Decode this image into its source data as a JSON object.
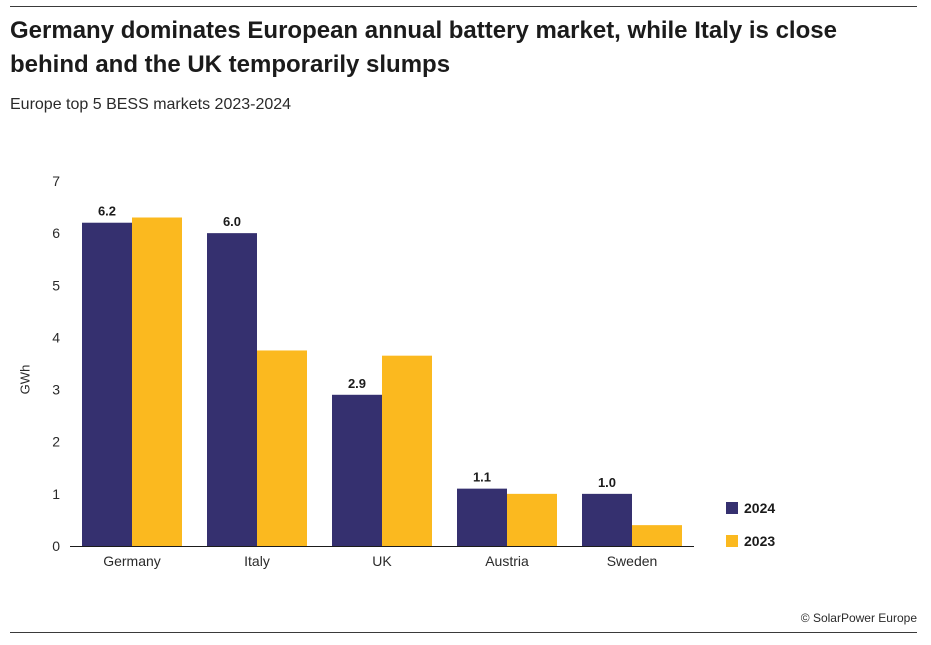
{
  "header": {
    "title": "Germany dominates European annual battery market, while Italy is close behind and the UK temporarily slumps",
    "subtitle": "Europe top 5 BESS markets 2023-2024"
  },
  "source": {
    "symbol": "©",
    "text": "SolarPower Europe"
  },
  "colors": {
    "series_2024": "#35306f",
    "series_2023": "#fbb91f",
    "axis": "#1b1b1b"
  },
  "chart_data": {
    "type": "bar",
    "title": "Germany dominates European annual battery market, while Italy is close behind and the UK temporarily slumps",
    "subtitle": "Europe top 5 BESS markets 2023-2024",
    "xlabel": "",
    "ylabel": "GWh",
    "ylim": [
      0,
      7
    ],
    "yticks": [
      0,
      1,
      2,
      3,
      4,
      5,
      6,
      7
    ],
    "grid": false,
    "legend_position": "right",
    "categories": [
      "Germany",
      "Italy",
      "UK",
      "Austria",
      "Sweden"
    ],
    "series": [
      {
        "name": "2024",
        "values": [
          6.2,
          6.0,
          2.9,
          1.1,
          1.0
        ],
        "labels": [
          "6.2",
          "6.0",
          "2.9",
          "1.1",
          "1.0"
        ]
      },
      {
        "name": "2023",
        "values": [
          6.3,
          3.75,
          3.65,
          1.0,
          0.4
        ]
      }
    ]
  }
}
